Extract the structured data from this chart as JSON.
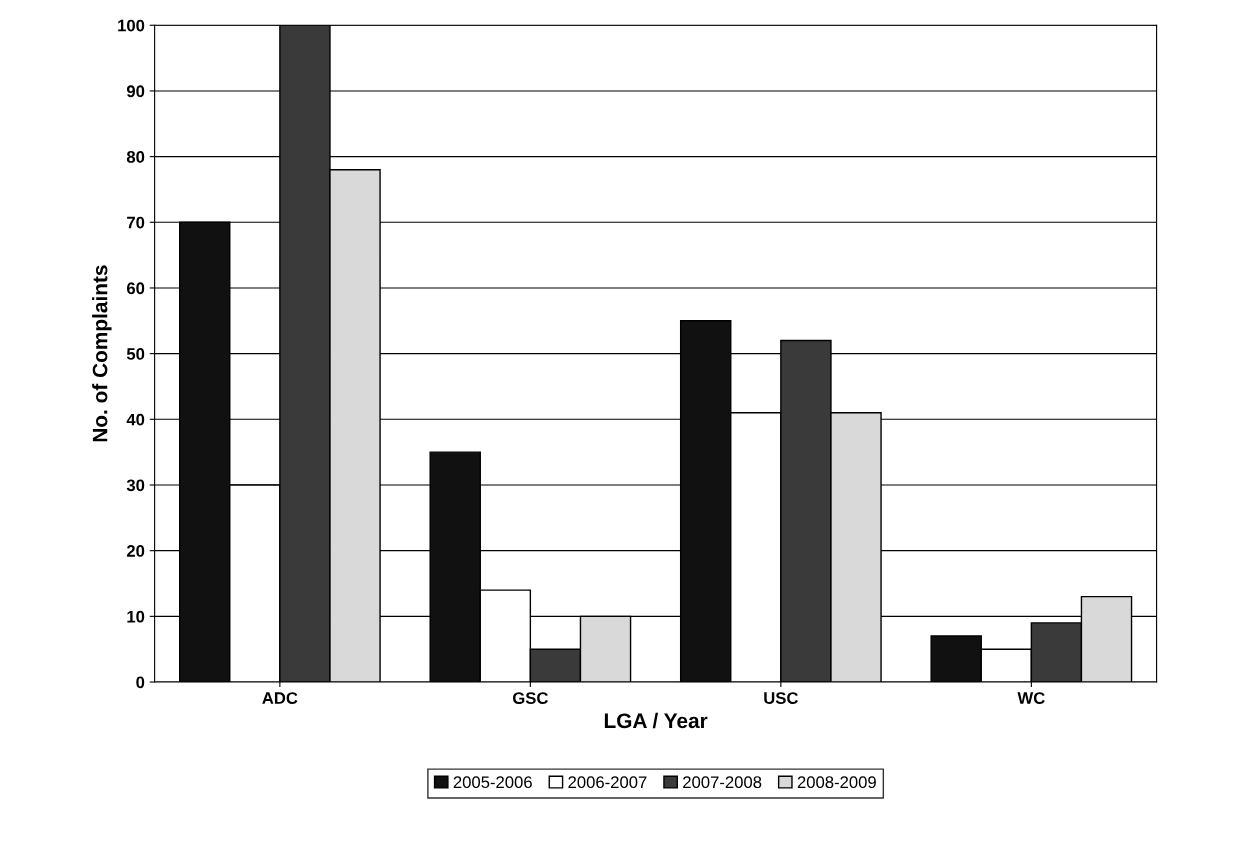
{
  "chart_data": {
    "type": "bar",
    "xlabel": "LGA / Year",
    "ylabel": "No. of Complaints",
    "categories": [
      "ADC",
      "GSC",
      "USC",
      "WC"
    ],
    "series": [
      {
        "name": "2005-2006",
        "color": "#111111",
        "values": [
          70,
          35,
          55,
          7
        ]
      },
      {
        "name": "2006-2007",
        "color": "#ffffff",
        "values": [
          30,
          14,
          41,
          5
        ]
      },
      {
        "name": "2007-2008",
        "color": "#3a3a3a",
        "values": [
          100,
          5,
          52,
          9
        ]
      },
      {
        "name": "2008-2009",
        "color": "#d9d9d9",
        "values": [
          78,
          10,
          41,
          13
        ]
      }
    ],
    "ylim": [
      0,
      100
    ],
    "yticks": [
      0,
      10,
      20,
      30,
      40,
      50,
      60,
      70,
      80,
      90,
      100
    ],
    "grid": "y",
    "legend": "bottom"
  }
}
